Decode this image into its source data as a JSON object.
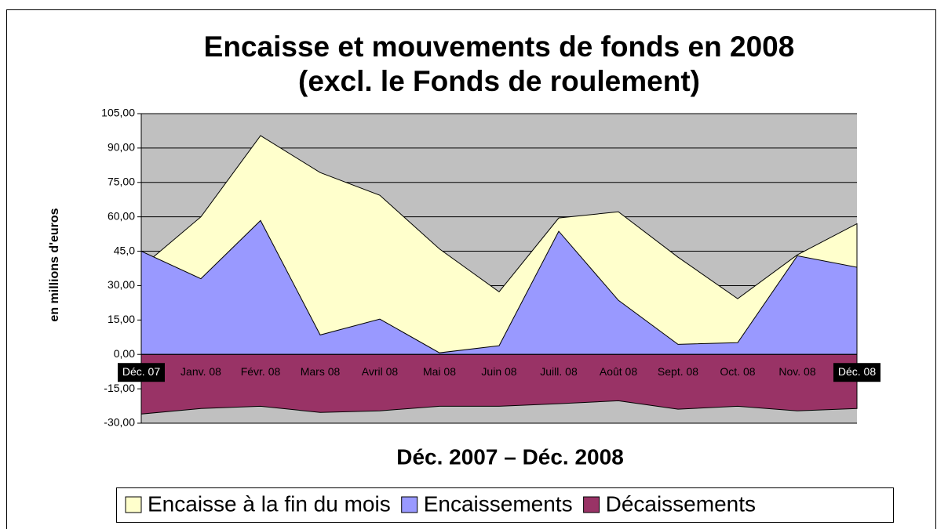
{
  "chart_data": {
    "type": "area",
    "title": [
      "Encaisse et mouvements de fonds en 2008",
      "(excl. le Fonds de roulement)"
    ],
    "x_label": "Déc. 2007 – Déc. 2008",
    "y_label": "en millions d'euros",
    "categories": [
      "Déc. 07",
      "Janv. 08",
      "Févr. 08",
      "Mars 08",
      "Avril 08",
      "Mai 08",
      "Juin 08",
      "Juill. 08",
      "Août 08",
      "Sept. 08",
      "Oct. 08",
      "Nov. 08",
      "Déc. 08"
    ],
    "series": [
      {
        "name": "Encaisse à la fin du mois",
        "color": "#ffffcc",
        "values": [
          38,
          60,
          95.4,
          79.3,
          69.4,
          46,
          27.3,
          59.5,
          62.2,
          42.4,
          24.3,
          43.4,
          57
        ]
      },
      {
        "name": "Encaissements",
        "color": "#9999ff",
        "values": [
          45,
          33,
          58.4,
          8.5,
          15.4,
          0.7,
          3.8,
          53.7,
          23.6,
          4.4,
          5.1,
          43,
          38
        ]
      },
      {
        "name": "Décaissements",
        "color": "#993366",
        "values": [
          -26,
          -23.6,
          -22.6,
          -25.3,
          -24.6,
          -22.6,
          -22.6,
          -21.5,
          -20.2,
          -23.9,
          -22.6,
          -24.6,
          -23.6
        ]
      }
    ],
    "ylim": [
      -30,
      105
    ],
    "yticks": [
      {
        "value": -30,
        "label": "-30,00"
      },
      {
        "value": -15,
        "label": "-15,00"
      },
      {
        "value": 0,
        "label": "0,00"
      },
      {
        "value": 15,
        "label": "15,00"
      },
      {
        "value": 30,
        "label": "30,00"
      },
      {
        "value": 45,
        "label": "45,0"
      },
      {
        "value": 60,
        "label": "60,00"
      },
      {
        "value": 75,
        "label": "75,00"
      },
      {
        "value": 90,
        "label": "90,00"
      },
      {
        "value": 105,
        "label": "105,00"
      }
    ],
    "grid": true,
    "background": "#c0c0c0"
  }
}
